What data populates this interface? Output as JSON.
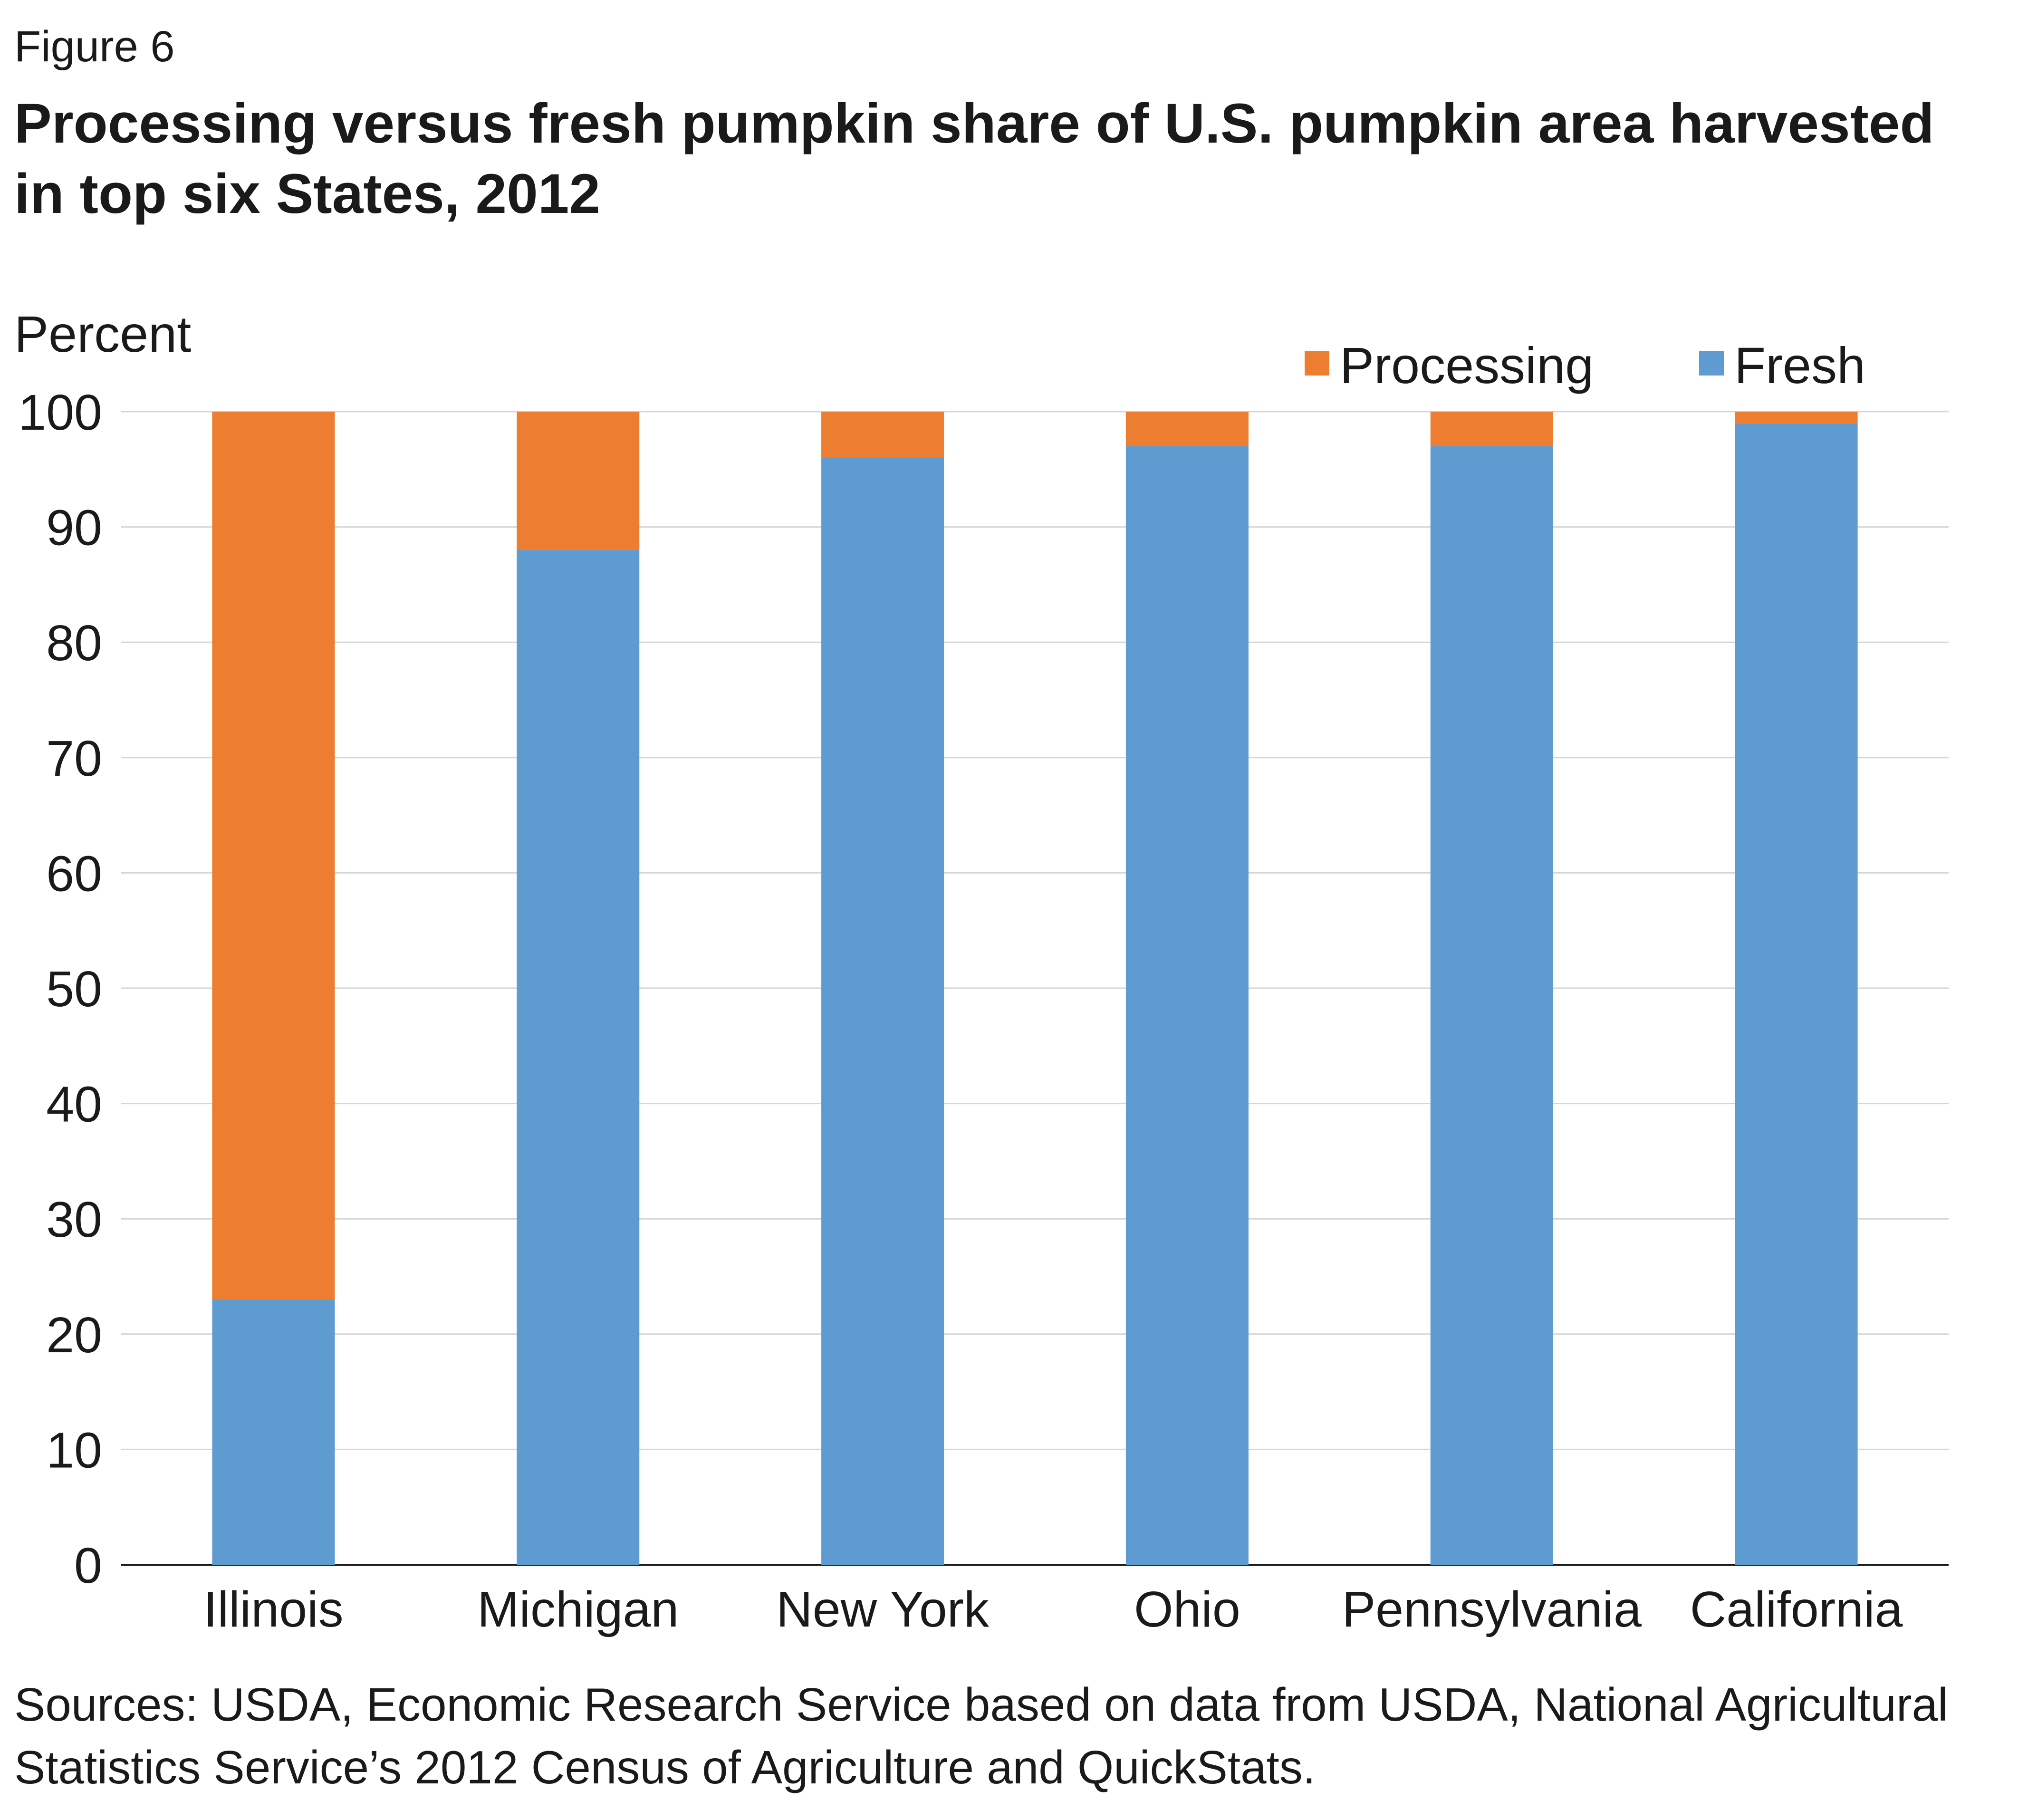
{
  "figure_label": "Figure 6",
  "title": "Processing versus fresh pumpkin share of U.S. pumpkin area harvested in top six States, 2012",
  "sources": "Sources: USDA, Economic Research Service based on data from USDA, National Agricultural Statistics Service’s 2012 Census of Agriculture and QuickStats.",
  "chart_data": {
    "type": "bar",
    "stacked": true,
    "categories": [
      "Illinois",
      "Michigan",
      "New York",
      "Ohio",
      "Pennsylvania",
      "California"
    ],
    "series": [
      {
        "name": "Fresh",
        "color": "#5e9bd1",
        "values": [
          23,
          88,
          96,
          97,
          97,
          99
        ]
      },
      {
        "name": "Processing",
        "color": "#ed7d31",
        "values": [
          77,
          12,
          4,
          3,
          3,
          1
        ]
      }
    ],
    "legend_order": [
      "Processing",
      "Fresh"
    ],
    "legend_position": "top-right",
    "ylabel": "Percent",
    "ylim": [
      0,
      100
    ],
    "yticks": [
      0,
      10,
      20,
      30,
      40,
      50,
      60,
      70,
      80,
      90,
      100
    ],
    "grid": true
  }
}
